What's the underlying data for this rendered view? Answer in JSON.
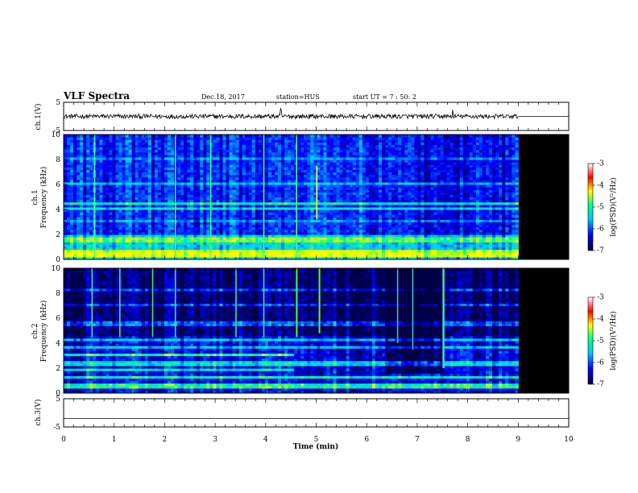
{
  "header": {
    "title": "VLF Spectra",
    "date": "Dec.18, 2017",
    "station": "station=HUS",
    "start": "start  UT =   7 : 50: 2"
  },
  "chart_data": [
    {
      "type": "line",
      "name": "ch1-waveform",
      "ylabel": "ch.1(V)",
      "ylim": [
        -5,
        5
      ],
      "yticks": [
        5,
        -5
      ],
      "xlim": [
        0,
        10
      ],
      "mean_level": 0,
      "data_end_min": 9.0
    },
    {
      "type": "heatmap",
      "name": "ch1-spectrogram",
      "ylabel": "ch.1\nFrequency (kHz)",
      "ylim": [
        0,
        10
      ],
      "yticks": [
        0,
        2,
        4,
        6,
        8,
        10
      ],
      "xlim": [
        0,
        10
      ],
      "data_end_min": 9.0,
      "colorbar": {
        "label": "log(PSD)(V²/Hz)",
        "range": [
          -7,
          -3
        ],
        "ticks": [
          -3,
          -4,
          -5,
          -6,
          -7
        ]
      }
    },
    {
      "type": "heatmap",
      "name": "ch2-spectrogram",
      "ylabel": "ch.2\nFrequency (kHz)",
      "ylim": [
        0,
        10
      ],
      "yticks": [
        0,
        2,
        4,
        6,
        8,
        10
      ],
      "xlim": [
        0,
        10
      ],
      "data_end_min": 9.0,
      "colorbar": {
        "label": "log(PSD)(V²/Hz)",
        "range": [
          -7,
          -3
        ],
        "ticks": [
          -3,
          -4,
          -5,
          -6,
          -7
        ]
      }
    },
    {
      "type": "line",
      "name": "ch3-waveform",
      "ylabel": "ch.3(V)",
      "ylim": [
        -5,
        5
      ],
      "yticks": [
        5,
        -5
      ],
      "xlim": [
        0,
        10
      ],
      "mean_level": -2
    }
  ],
  "xaxis": {
    "label": "Time (min)",
    "ticks": [
      0,
      1,
      2,
      3,
      4,
      5,
      6,
      7,
      8,
      9,
      10
    ]
  },
  "colors": {
    "colormap": [
      "#000033",
      "#0000ff",
      "#00c8ff",
      "#00ff80",
      "#ffff00",
      "#ff0000",
      "#ffffff"
    ],
    "nodata": "#000000"
  }
}
